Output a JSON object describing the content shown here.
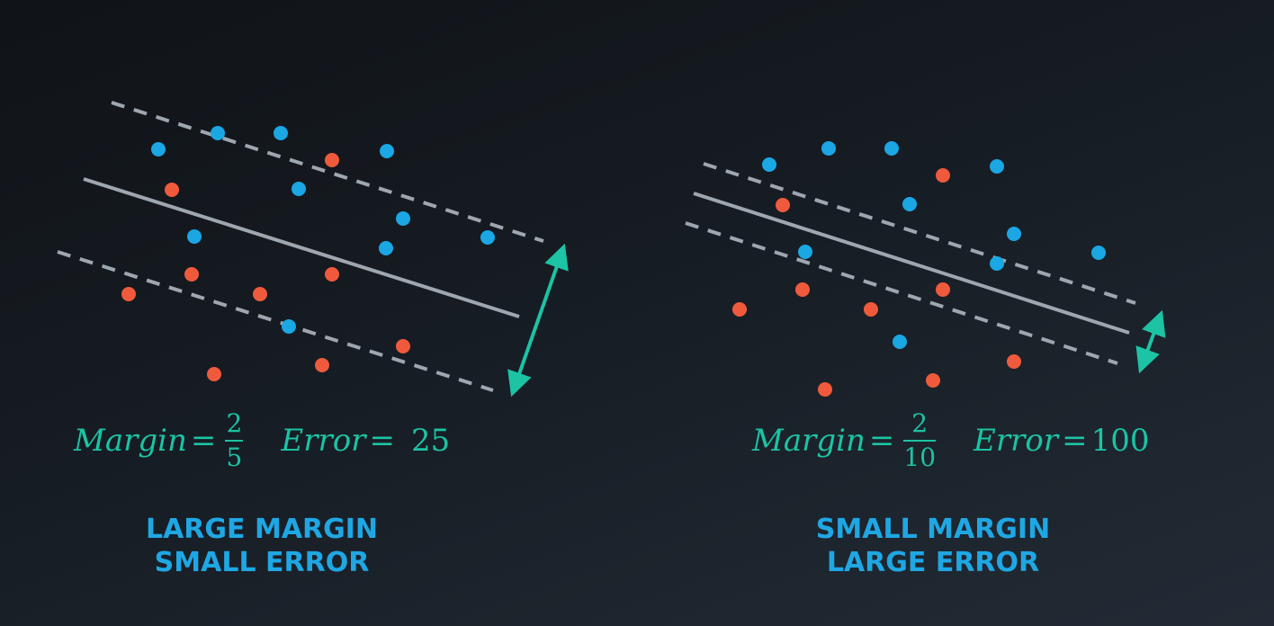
{
  "colors": {
    "blue_point": "#1aa7e4",
    "red_point": "#f05a3c",
    "line": "#9ea6b0",
    "arrow": "#1cc3a4",
    "caption": "#1fa7e4"
  },
  "panels": [
    {
      "id": "left",
      "margin_label": "Margin",
      "margin_numerator": "2",
      "margin_denominator": "5",
      "error_label": "Error",
      "error_value": "25",
      "caption_line1": "LARGE MARGIN",
      "caption_line2": "SMALL ERROR"
    },
    {
      "id": "right",
      "margin_label": "Margin",
      "margin_numerator": "2",
      "margin_denominator": "10",
      "error_label": "Error",
      "error_value": "100",
      "caption_line1": "SMALL MARGIN",
      "caption_line2": "LARGE ERROR"
    }
  ]
}
